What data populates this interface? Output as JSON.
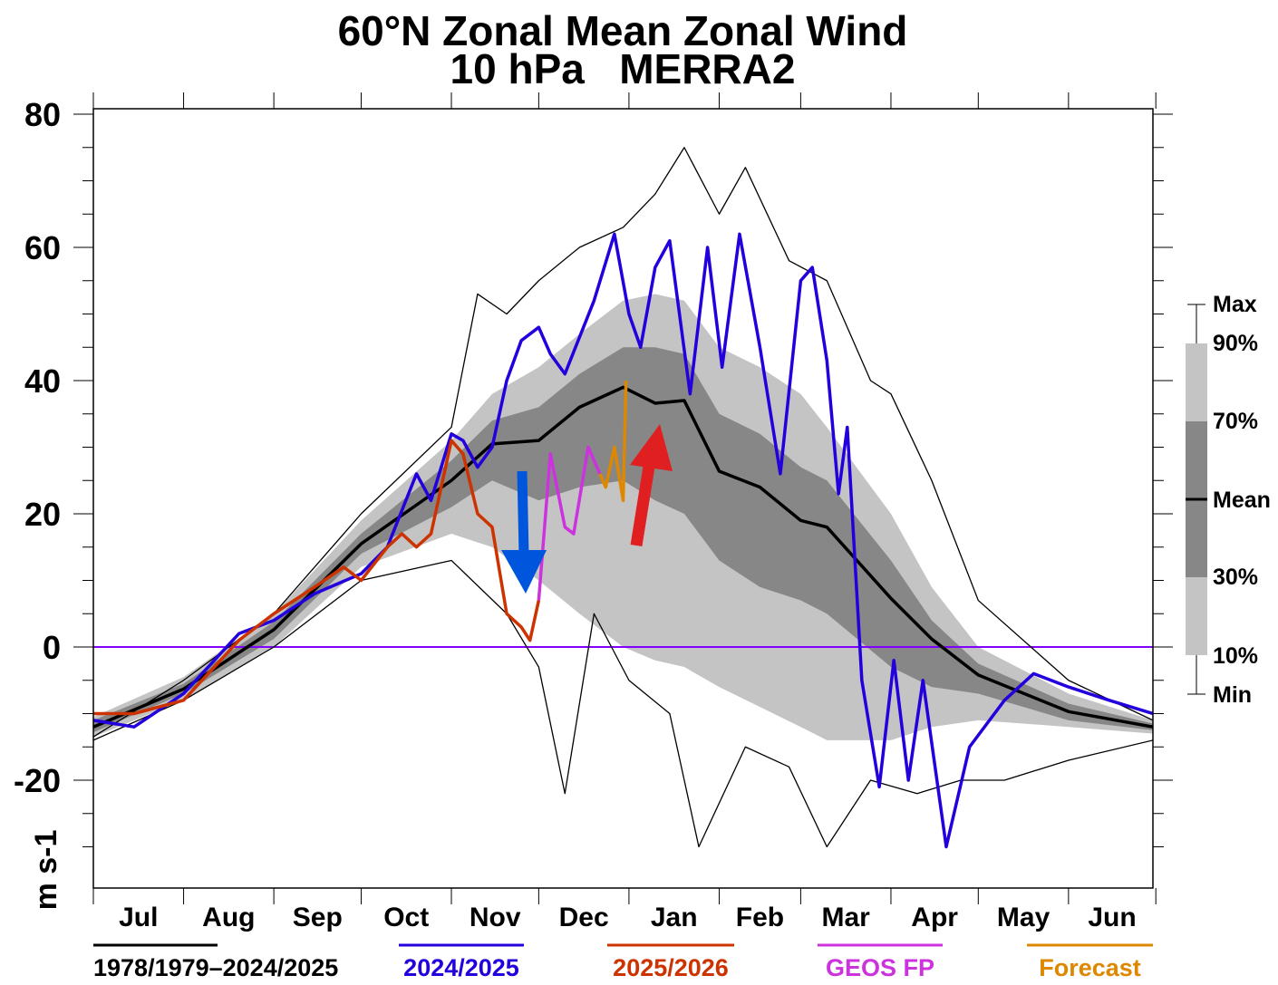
{
  "chart_data": {
    "type": "line",
    "title": "60°N Zonal Mean Zonal Wind",
    "subtitle": "10 hPa   MERRA2",
    "ylabel": "m s-1",
    "ylim": [
      -35,
      81
    ],
    "yticks": [
      80,
      60,
      40,
      20,
      0,
      -20
    ],
    "months": [
      "Jul",
      "Aug",
      "Sep",
      "Oct",
      "Nov",
      "Dec",
      "Jan",
      "Feb",
      "Mar",
      "Apr",
      "May",
      "Jun"
    ],
    "grid": false,
    "zero_line_color": "#7f00ff",
    "legend_side": {
      "labels": [
        "Max",
        "90%",
        "70%",
        "Mean",
        "30%",
        "10%",
        "Min"
      ],
      "placement": "right"
    },
    "band_colors": {
      "outer": "#c4c4c4",
      "inner": "#878787"
    },
    "climatology": {
      "dates": [
        "07-01",
        "08-01",
        "09-01",
        "10-01",
        "11-01",
        "11-15",
        "12-01",
        "12-15",
        "12-30",
        "01-10",
        "01-20",
        "02-01",
        "02-15",
        "03-01",
        "03-10",
        "04-01",
        "04-15",
        "05-01",
        "06-01",
        "06-30"
      ],
      "mean": [
        -12,
        -6.3,
        2.6,
        15.5,
        25,
        30.5,
        31,
        36,
        39,
        36.6,
        37,
        26.4,
        24,
        19,
        18,
        7.3,
        1.2,
        -4.2,
        -9.7,
        -12
      ],
      "p90": [
        -10.5,
        -4.5,
        5,
        19,
        31,
        38,
        42,
        47,
        52,
        53,
        52,
        45,
        42,
        38,
        33,
        20,
        9,
        0,
        -7,
        -11
      ],
      "p70": [
        -11,
        -5.5,
        3.8,
        17,
        28,
        34,
        36,
        41,
        45,
        45,
        44,
        35,
        32,
        27,
        25,
        13,
        4,
        -2.5,
        -8.5,
        -11.5
      ],
      "p30": [
        -12.8,
        -7,
        1.2,
        14,
        21,
        25,
        22,
        24,
        25,
        22,
        20,
        13,
        9,
        7,
        5,
        -3,
        -6,
        -7,
        -11,
        -12.5
      ],
      "p10": [
        -13.5,
        -8,
        0,
        12,
        17,
        15,
        10,
        5,
        0,
        -2,
        -3,
        -6,
        -9,
        -12,
        -14,
        -14,
        -12,
        -11,
        -12,
        -13
      ]
    },
    "max": {
      "dates": [
        "07-01",
        "08-01",
        "09-01",
        "10-01",
        "11-01",
        "11-10",
        "11-20",
        "12-01",
        "12-15",
        "12-30",
        "01-10",
        "01-20",
        "02-01",
        "02-10",
        "02-25",
        "03-10",
        "03-25",
        "04-01",
        "04-15",
        "05-01",
        "06-01",
        "06-30"
      ],
      "values": [
        -13.5,
        -5,
        5,
        20,
        33,
        53,
        50,
        55,
        60,
        63,
        68,
        75,
        65,
        72,
        58,
        55,
        40,
        38,
        25,
        7,
        -5,
        -11
      ]
    },
    "min": {
      "dates": [
        "07-01",
        "08-01",
        "09-01",
        "10-01",
        "11-01",
        "11-20",
        "12-01",
        "12-10",
        "12-20",
        "01-01",
        "01-15",
        "01-25",
        "02-10",
        "02-25",
        "03-10",
        "03-25",
        "04-10",
        "04-25",
        "05-10",
        "06-01",
        "06-30"
      ],
      "values": [
        -14,
        -8,
        0,
        10,
        13,
        5,
        -3,
        -22,
        5,
        -5,
        -10,
        -30,
        -15,
        -18,
        -30,
        -20,
        -22,
        -20,
        -20,
        -17,
        -14
      ]
    },
    "series": [
      {
        "name": "2024/2025",
        "color": "#2200dd",
        "dates": [
          "07-01",
          "07-15",
          "08-01",
          "08-20",
          "09-01",
          "09-15",
          "10-01",
          "10-10",
          "10-20",
          "10-25",
          "11-01",
          "11-05",
          "11-10",
          "11-15",
          "11-20",
          "11-25",
          "12-01",
          "12-05",
          "12-10",
          "12-20",
          "12-27",
          "01-01",
          "01-05",
          "01-10",
          "01-15",
          "01-22",
          "01-28",
          "02-02",
          "02-08",
          "02-15",
          "02-22",
          "03-01",
          "03-05",
          "03-10",
          "03-14",
          "03-17",
          "03-22",
          "03-28",
          "04-02",
          "04-07",
          "04-12",
          "04-20",
          "04-28",
          "05-10",
          "05-20",
          "06-01",
          "06-15",
          "06-30"
        ],
        "values": [
          -11,
          -12,
          -7,
          2,
          4,
          8,
          11,
          15,
          26,
          22,
          32,
          31,
          27,
          30,
          40,
          46,
          48,
          44,
          41,
          52,
          62,
          50,
          45,
          57,
          61,
          38,
          60,
          42,
          62,
          45,
          26,
          55,
          57,
          43,
          23,
          33,
          -5,
          -21,
          -2,
          -20,
          -5,
          -30,
          -15,
          -8,
          -4,
          -6,
          -8,
          -10
        ]
      },
      {
        "name": "2025/2026",
        "color": "#cc3300",
        "dates": [
          "07-01",
          "07-15",
          "08-01",
          "08-20",
          "09-01",
          "09-15",
          "09-25",
          "10-01",
          "10-10",
          "10-15",
          "10-20",
          "10-25",
          "11-01",
          "11-05",
          "11-10",
          "11-15",
          "11-20",
          "11-25",
          "11-28",
          "12-01"
        ],
        "values": [
          -10,
          -10,
          -8,
          1,
          5,
          9,
          12,
          10,
          15,
          17,
          15,
          17,
          31,
          29,
          20,
          18,
          5,
          3,
          1,
          7
        ]
      },
      {
        "name": "GEOS FP",
        "color": "#cc33dd",
        "dates": [
          "12-01",
          "12-05",
          "12-10",
          "12-13",
          "12-18",
          "12-20",
          "12-22"
        ],
        "values": [
          7,
          29,
          18,
          17,
          30,
          28,
          26
        ]
      },
      {
        "name": "Forecast",
        "color": "#dd8800",
        "dates": [
          "12-22",
          "12-24",
          "12-27",
          "12-30",
          "12-31"
        ],
        "values": [
          26,
          24,
          30,
          22,
          40
        ]
      }
    ],
    "legend_bottom": [
      "1978/1979–2024/2025",
      "2024/2025",
      "2025/2026",
      "GEOS FP",
      "Forecast"
    ],
    "legend_bottom_colors": [
      "#000000",
      "#2200dd",
      "#cc3300",
      "#cc33dd",
      "#dd8800"
    ],
    "annotations": [
      {
        "type": "arrow-down",
        "color": "#0055dd"
      },
      {
        "type": "arrow-up",
        "color": "#e02020"
      }
    ]
  }
}
